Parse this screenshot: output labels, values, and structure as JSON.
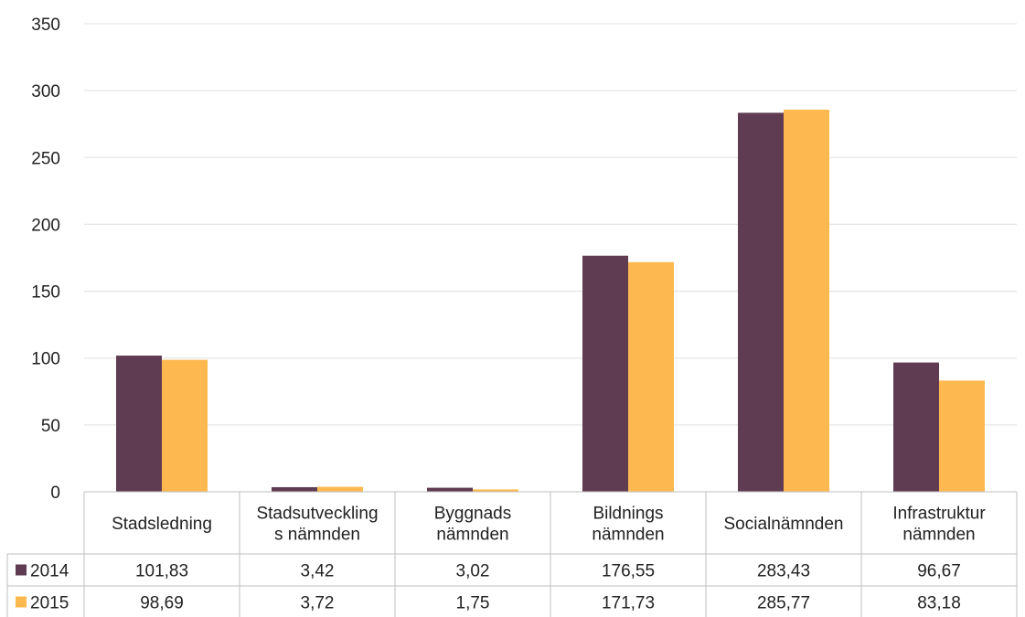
{
  "chart_data": {
    "type": "bar",
    "categories": [
      [
        "Stadsledning"
      ],
      [
        "Stadsutveckling",
        "s nämnden"
      ],
      [
        "Byggnads",
        "nämnden"
      ],
      [
        "Bildnings",
        "nämnden"
      ],
      [
        "Socialnämnden"
      ],
      [
        "Infrastruktur",
        "nämnden"
      ]
    ],
    "series": [
      {
        "name": "2014",
        "color": "#5f3c51",
        "values": [
          101.83,
          3.42,
          3.02,
          176.55,
          283.43,
          96.67
        ],
        "labels": [
          "101,83",
          "3,42",
          "3,02",
          "176,55",
          "283,43",
          "96,67"
        ]
      },
      {
        "name": "2015",
        "color": "#fdb94f",
        "values": [
          98.69,
          3.72,
          1.75,
          171.73,
          285.77,
          83.18
        ],
        "labels": [
          "98,69",
          "3,72",
          "1,75",
          "171,73",
          "285,77",
          "83,18"
        ]
      }
    ],
    "ylim": [
      0,
      350
    ],
    "yticks": [
      "0",
      "50",
      "100",
      "150",
      "200",
      "250",
      "300",
      "350"
    ],
    "grid": true,
    "legend": "data-table"
  }
}
